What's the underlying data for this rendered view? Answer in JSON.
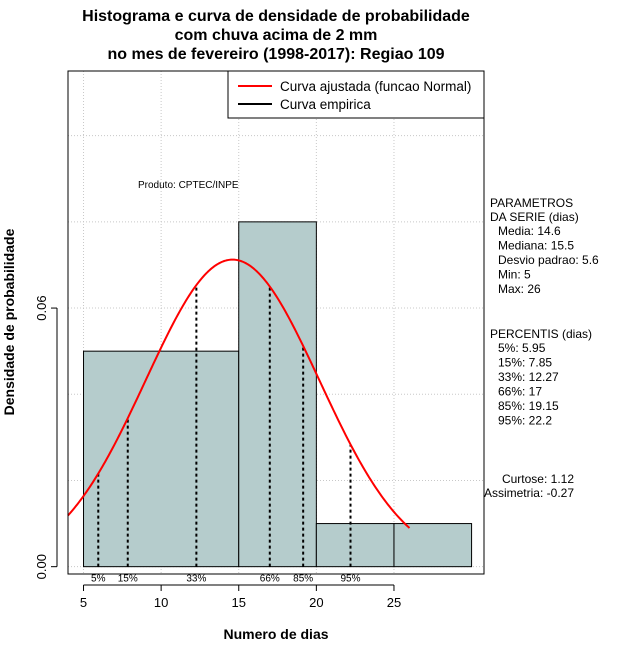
{
  "chart_data": {
    "type": "histogram",
    "title": [
      "Histograma e curva de densidade de probabilidade",
      "com chuva acima de 2 mm",
      "no mes de fevereiro (1998-2017): Regiao 109"
    ],
    "xlabel": "Numero de dias",
    "ylabel": "Densidade de probabilidade",
    "xlim": [
      4,
      30.8
    ],
    "ylim": [
      -0.0017,
      0.115
    ],
    "x_ticks": [
      5,
      10,
      15,
      20,
      25
    ],
    "y_ticks": [
      0.0,
      0.06
    ],
    "y_tick_labels": [
      "0.00",
      "0.06"
    ],
    "grid": true,
    "bins": [
      {
        "start": 5,
        "end": 15,
        "density": 0.05
      },
      {
        "start": 15,
        "end": 20,
        "density": 0.08
      },
      {
        "start": 20,
        "end": 25,
        "density": 0.01
      },
      {
        "start": 25,
        "end": 30,
        "density": 0.01
      }
    ],
    "normal_curve": {
      "mean": 14.6,
      "sd": 5.6,
      "x_range": [
        4,
        26
      ],
      "color": "#ff0000"
    },
    "empirical_curve": {
      "color": "#000000"
    },
    "percentiles": [
      {
        "label": "5%",
        "value": 5.95
      },
      {
        "label": "15%",
        "value": 7.85
      },
      {
        "label": "33%",
        "value": 12.27
      },
      {
        "label": "66%",
        "value": 17
      },
      {
        "label": "85%",
        "value": 19.15
      },
      {
        "label": "95%",
        "value": 22.2
      }
    ],
    "legend": {
      "placement": "top-right",
      "items": [
        {
          "name": "Curva ajustada (funcao Normal)",
          "color": "#ff0000"
        },
        {
          "name": "Curva empirica",
          "color": "#000000"
        }
      ]
    },
    "credit": "Produto: CPTEC/INPE",
    "bar_color": "#b5cccc",
    "parametros": {
      "heading": [
        "PARAMETROS",
        "DA SERIE (dias)"
      ],
      "lines": [
        "Media: 14.6",
        "Mediana: 15.5",
        "Desvio padrao: 5.6",
        "Min: 5",
        "Max: 26"
      ]
    },
    "percentis_box": {
      "heading": "PERCENTIS (dias)",
      "lines": [
        "5%: 5.95",
        "15%: 7.85",
        "33%: 12.27",
        "66%: 17",
        "85%: 19.15",
        "95%: 22.2"
      ]
    },
    "shape_stats": [
      "Curtose: 1.12",
      "Assimetria: -0.27"
    ]
  }
}
